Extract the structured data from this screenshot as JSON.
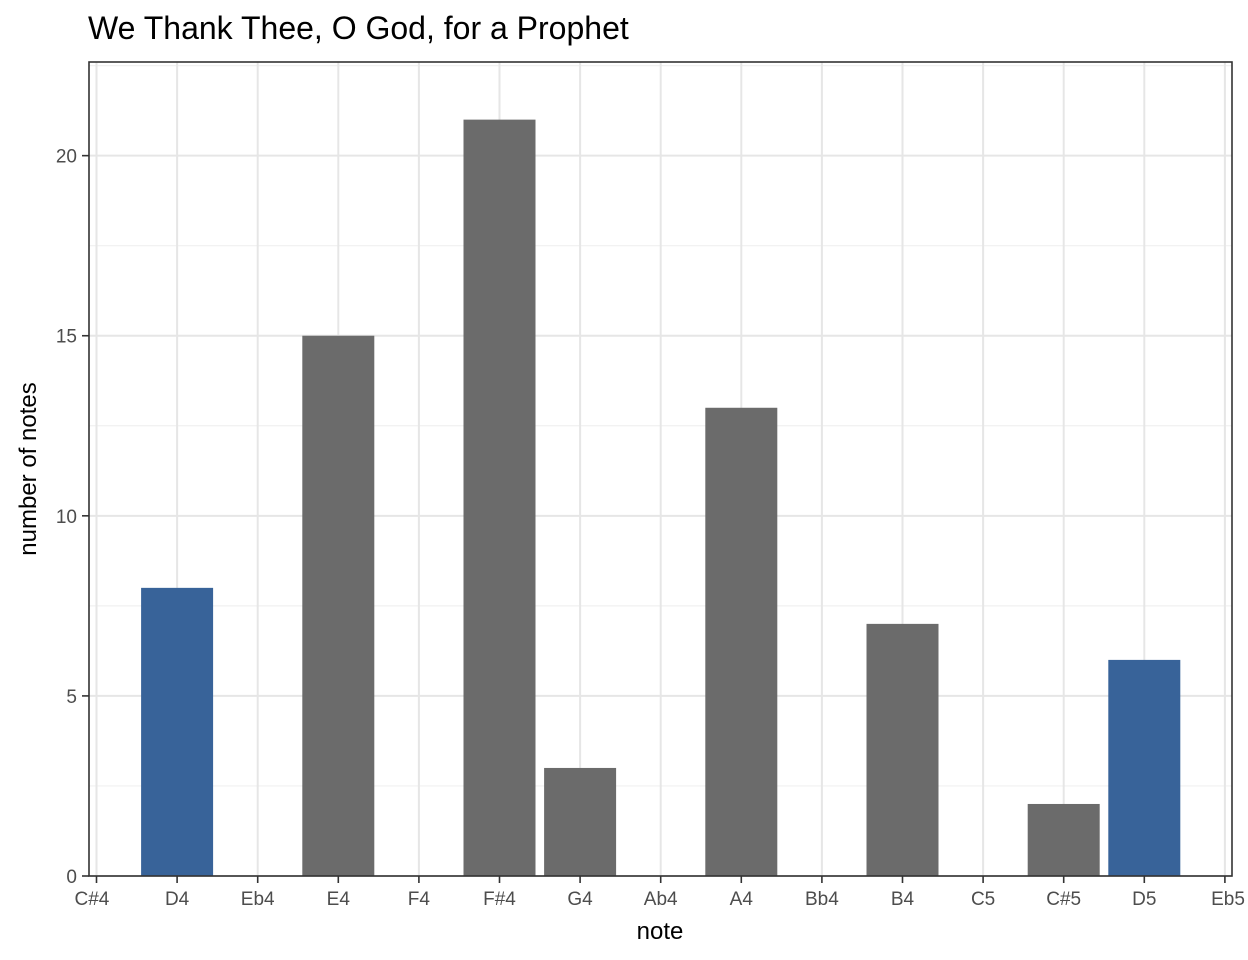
{
  "chart_data": {
    "type": "bar",
    "title": "We Thank Thee, O God, for a Prophet",
    "xlabel": "note",
    "ylabel": "number of notes",
    "categories": [
      "C#4",
      "D4",
      "Eb4",
      "E4",
      "F4",
      "F#4",
      "G4",
      "Ab4",
      "A4",
      "Bb4",
      "B4",
      "C5",
      "C#5",
      "D5",
      "Eb5"
    ],
    "values": [
      0,
      8,
      0,
      15,
      0,
      21,
      3,
      0,
      13,
      0,
      7,
      0,
      2,
      6,
      0
    ],
    "highlighted": [
      "D4",
      "D5"
    ],
    "colors": {
      "bar": "#6b6b6b",
      "highlight": "#386399"
    },
    "y_ticks": [
      0,
      5,
      10,
      15,
      20
    ],
    "ylim": [
      0,
      22.6
    ],
    "grid": true,
    "legend": "none"
  }
}
